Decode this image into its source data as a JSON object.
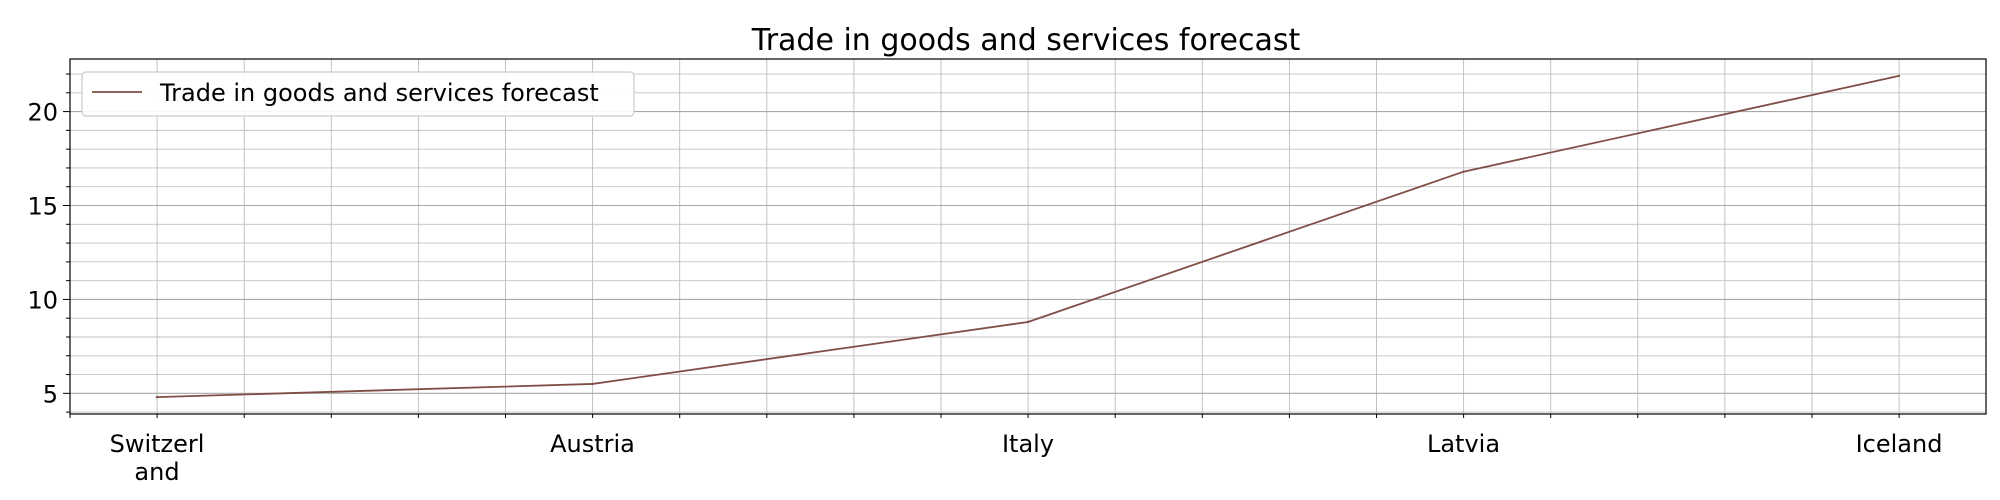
{
  "chart_data": {
    "type": "line",
    "title": "Trade in goods and services forecast",
    "xlabel": "",
    "ylabel": "",
    "categories": [
      "Switzerland",
      "Austria",
      "Italy",
      "Latvia",
      "Iceland"
    ],
    "series": [
      {
        "name": "Trade in goods and services forecast",
        "values": [
          4.8,
          5.5,
          8.8,
          16.8,
          21.9
        ],
        "color": "#7f4f45"
      }
    ],
    "ylim": [
      3.9,
      22.8
    ],
    "yticks": [
      5,
      10,
      15,
      20
    ],
    "grid": true,
    "minor_grid": true,
    "legend": "top-left"
  }
}
